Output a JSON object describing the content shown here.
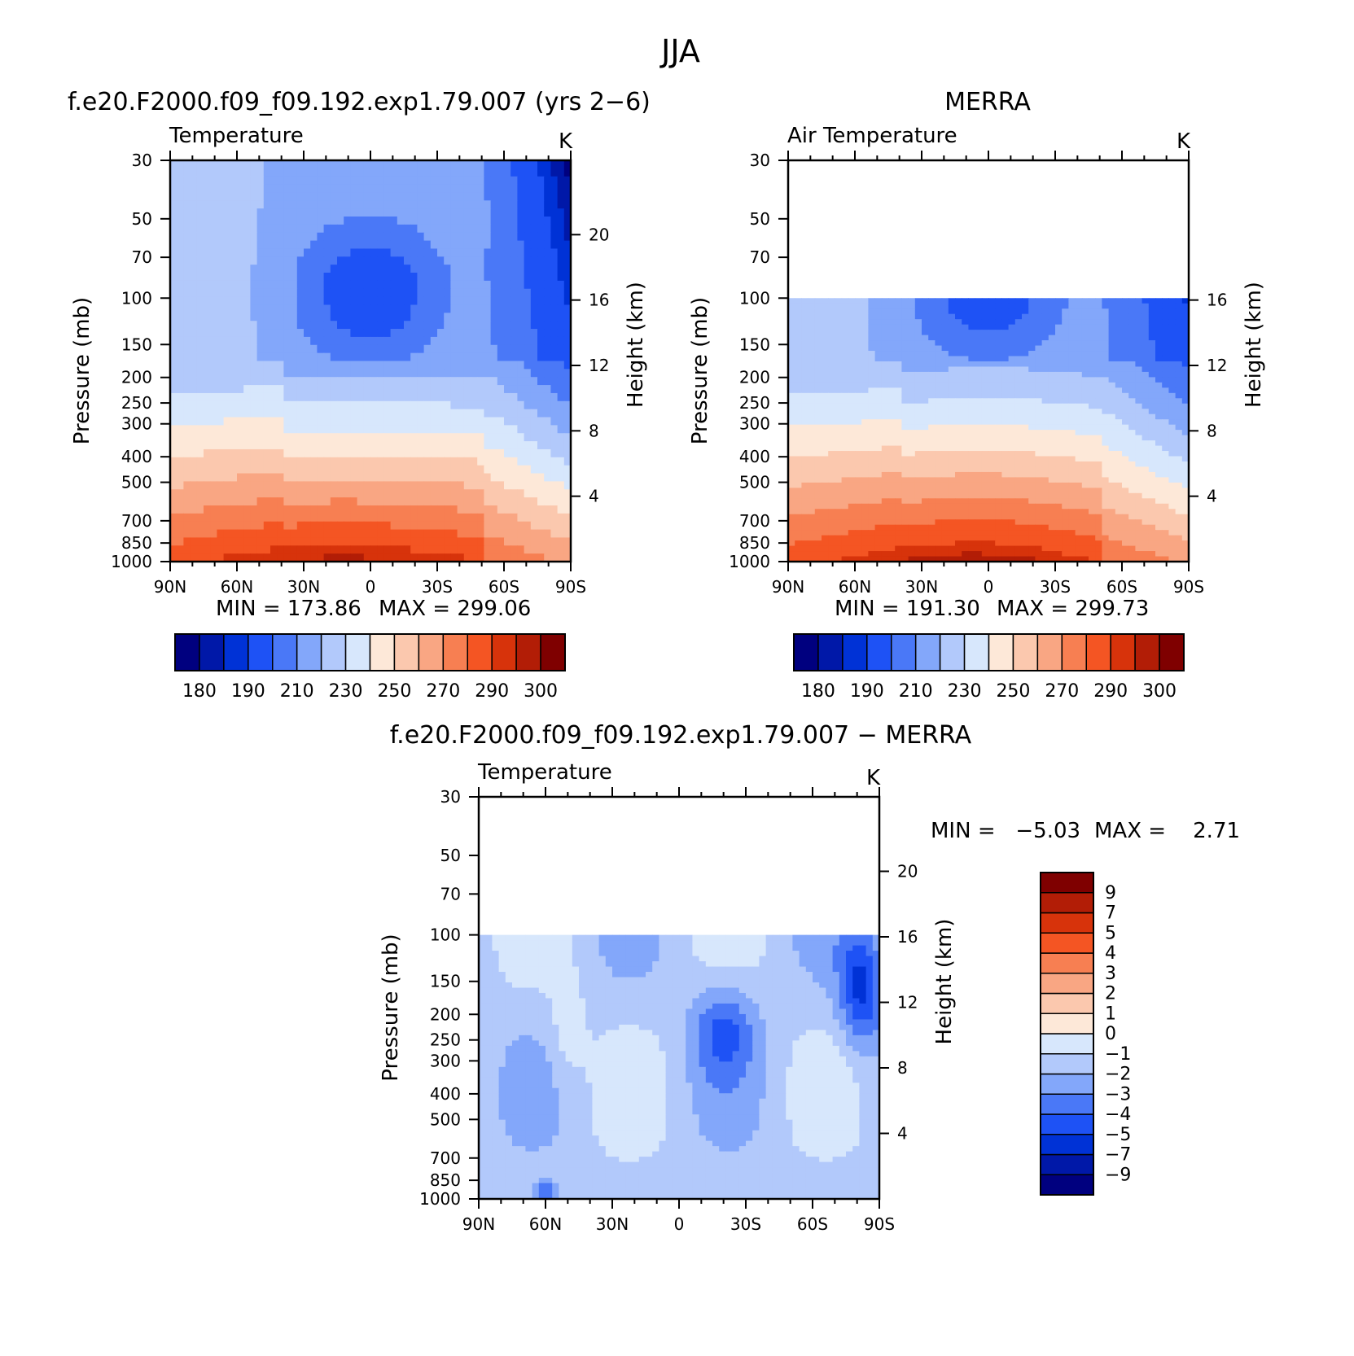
{
  "figure": {
    "title": "JJA"
  },
  "palettes": {
    "abs": [
      "#00007f",
      "#0018a8",
      "#0032d6",
      "#1e52f5",
      "#4a78f7",
      "#83a7fa",
      "#b2c9fb",
      "#d7e7fc",
      "#fde8d8",
      "#fbc8ae",
      "#f9a683",
      "#f77f52",
      "#f45523",
      "#d7330b",
      "#b21d06",
      "#7f0000"
    ],
    "diff": [
      "#00007f",
      "#0018a8",
      "#0032d6",
      "#1e52f5",
      "#4a78f7",
      "#83a7fa",
      "#b2c9fb",
      "#d7e7fc",
      "#fde8d8",
      "#fbc8ae",
      "#f9a683",
      "#f77f52",
      "#f45523",
      "#d7330b",
      "#b21d06",
      "#7f0000"
    ]
  },
  "chart_data": [
    {
      "id": "model",
      "type": "heatmap",
      "title": "f.e20.F2000.f09_f09.192.exp1.79.007 (yrs 2−6)",
      "left_label": "Temperature",
      "unit": "K",
      "ylabel": "Pressure (mb)",
      "ylabel_right": "Height (km)",
      "x_ticks": [
        "90N",
        "60N",
        "30N",
        "0",
        "30S",
        "60S",
        "90S"
      ],
      "y_ticks": [
        30,
        50,
        70,
        100,
        150,
        200,
        250,
        300,
        400,
        500,
        700,
        850,
        1000
      ],
      "y_tick_labels": [
        "30",
        "50",
        "70",
        "100",
        "150",
        "200",
        "250",
        "300",
        "400",
        "500",
        "700",
        "850",
        "1000"
      ],
      "right_ticks": [
        20,
        16,
        12,
        8,
        4
      ],
      "right_tick_labels": [
        "20",
        "16",
        "12",
        "8",
        "4"
      ],
      "ylim": [
        1000,
        30
      ],
      "xlim": [
        90,
        -90
      ],
      "data_top": 30,
      "min_label": "MIN = 173.86",
      "max_label": "MAX = 299.06",
      "levels": [
        180,
        190,
        210,
        230,
        250,
        270,
        290,
        300
      ],
      "level_labels": [
        "180",
        "190",
        "210",
        "230",
        "250",
        "270",
        "290",
        "300"
      ],
      "colorbar": "horizontal"
    },
    {
      "id": "obs",
      "type": "heatmap",
      "title": "MERRA",
      "left_label": "Air Temperature",
      "unit": "K",
      "ylabel": "Pressure (mb)",
      "ylabel_right": "Height (km)",
      "x_ticks": [
        "90N",
        "60N",
        "30N",
        "0",
        "30S",
        "60S",
        "90S"
      ],
      "y_ticks": [
        30,
        50,
        70,
        100,
        150,
        200,
        250,
        300,
        400,
        500,
        700,
        850,
        1000
      ],
      "y_tick_labels": [
        "30",
        "50",
        "70",
        "100",
        "150",
        "200",
        "250",
        "300",
        "400",
        "500",
        "700",
        "850",
        "1000"
      ],
      "right_ticks": [
        16,
        12,
        8,
        4
      ],
      "right_tick_labels": [
        "16",
        "12",
        "8",
        "4"
      ],
      "ylim": [
        1000,
        30
      ],
      "xlim": [
        90,
        -90
      ],
      "data_top": 100,
      "min_label": "MIN = 191.30",
      "max_label": "MAX = 299.73",
      "levels": [
        180,
        190,
        210,
        230,
        250,
        270,
        290,
        300
      ],
      "level_labels": [
        "180",
        "190",
        "210",
        "230",
        "250",
        "270",
        "290",
        "300"
      ],
      "colorbar": "horizontal"
    },
    {
      "id": "diff",
      "type": "heatmap",
      "title": "f.e20.F2000.f09_f09.192.exp1.79.007 − MERRA",
      "left_label": "Temperature",
      "unit": "K",
      "ylabel": "Pressure (mb)",
      "ylabel_right": "Height (km)",
      "x_ticks": [
        "90N",
        "60N",
        "30N",
        "0",
        "30S",
        "60S",
        "90S"
      ],
      "y_ticks": [
        30,
        50,
        70,
        100,
        150,
        200,
        250,
        300,
        400,
        500,
        700,
        850,
        1000
      ],
      "y_tick_labels": [
        "30",
        "50",
        "70",
        "100",
        "150",
        "200",
        "250",
        "300",
        "400",
        "500",
        "700",
        "850",
        "1000"
      ],
      "right_ticks": [
        20,
        16,
        12,
        8,
        4
      ],
      "right_tick_labels": [
        "20",
        "16",
        "12",
        "8",
        "4"
      ],
      "ylim": [
        1000,
        30
      ],
      "xlim": [
        90,
        -90
      ],
      "data_top": 100,
      "min_label": "MIN =   −5.03",
      "max_label": "MAX =    2.71",
      "levels": [
        9,
        7,
        5,
        4,
        3,
        2,
        1,
        0,
        -1,
        -2,
        -3,
        -4,
        -5,
        -7,
        -9
      ],
      "level_labels": [
        "9",
        "7",
        "5",
        "4",
        "3",
        "2",
        "1",
        "0",
        "−1",
        "−2",
        "−3",
        "−4",
        "−5",
        "−7",
        "−9"
      ],
      "colorbar": "vertical"
    }
  ]
}
